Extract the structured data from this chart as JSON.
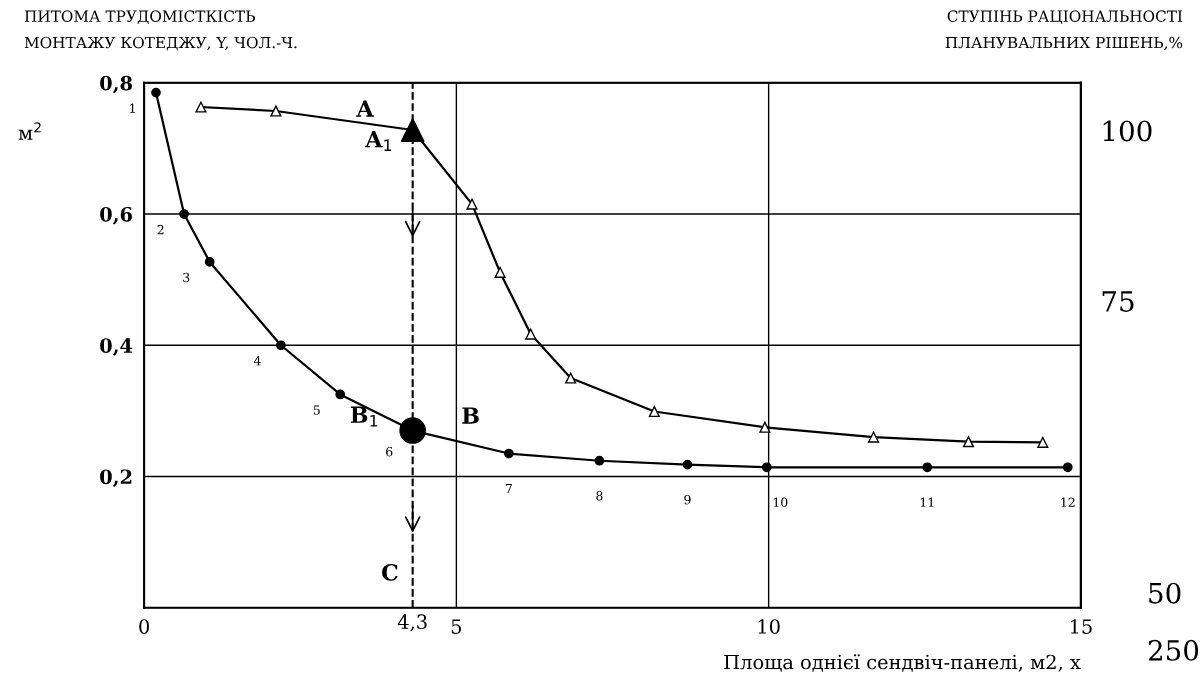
{
  "chart_data": {
    "type": "line",
    "ylabel": "ПИТОМА ТРУДОМІСТКІСТЬ\nМОНТАЖУ КОТЕДЖУ, Y, ЧОЛ.-Ч.",
    "y2label": "СТУПІНЬ РАЦІОНАЛЬНОСТІ\nПЛАНУВАЛЬНИХ РІШЕНЬ,%",
    "xlabel": "Площа однієї сендвіч-панелі, м2, х",
    "xlim": [
      0,
      15
    ],
    "xticks": [
      0,
      5,
      10,
      15
    ],
    "ylim": [
      0,
      0.8
    ],
    "yticks": [
      {
        "value": 0.2,
        "label": "0,2"
      },
      {
        "value": 0.4,
        "label": "0,4"
      },
      {
        "value": 0.6,
        "label": "0,6"
      },
      {
        "value": 0.8,
        "label": "0,8"
      }
    ],
    "y2lim": [
      30,
      107
    ],
    "y2ticks": [
      75,
      100
    ],
    "grid": true,
    "line_style": "solid",
    "series": [
      {
        "color": "#000000",
        "marker": "triangle",
        "x": [
          0.91,
          2.11,
          4.3,
          5.25,
          5.7,
          6.19,
          6.83,
          8.17,
          9.94,
          11.68,
          13.2,
          14.39
        ],
        "values": [
          0.763,
          0.757,
          0.728,
          0.615,
          0.511,
          0.417,
          0.35,
          0.299,
          0.275,
          0.26,
          0.253,
          0.252
        ]
      },
      {
        "color": "#000000",
        "marker": "circle",
        "x": [
          0.19,
          0.64,
          1.05,
          2.19,
          3.14,
          4.3,
          5.84,
          7.29,
          8.7,
          9.97,
          12.54,
          14.79
        ],
        "values": [
          0.785,
          0.6,
          0.527,
          0.4,
          0.325,
          0.27,
          0.235,
          0.224,
          0.218,
          0.214,
          0.214,
          0.214
        ]
      },
      {
        "type": "scatter",
        "color": "#000000",
        "marker": "triangle",
        "x": [
          4.3
        ],
        "values": [
          0.728
        ]
      },
      {
        "type": "scatter",
        "color": "#000000",
        "marker": "circle",
        "x": [
          4.3
        ],
        "values": [
          0.27
        ]
      }
    ],
    "ref_lines": [
      {
        "axis": "x",
        "value": 4.3,
        "label": "4,3",
        "color": "#000000",
        "line_style": "dashed"
      }
    ],
    "annotations": [
      {
        "text": "1",
        "x": 0.19,
        "y": 0.785
      },
      {
        "text": "2",
        "x": 0.64,
        "y": 0.6
      },
      {
        "text": "3",
        "x": 1.05,
        "y": 0.527
      },
      {
        "text": "4",
        "x": 2.19,
        "y": 0.4
      },
      {
        "text": "5",
        "x": 3.14,
        "y": 0.325
      },
      {
        "text": "6",
        "x": 4.3,
        "y": 0.27
      },
      {
        "text": "7",
        "x": 5.84,
        "y": 0.235
      },
      {
        "text": "8",
        "x": 7.29,
        "y": 0.224
      },
      {
        "text": "9",
        "x": 8.7,
        "y": 0.218
      },
      {
        "text": "10",
        "x": 9.97,
        "y": 0.214
      },
      {
        "text": "11",
        "x": 12.54,
        "y": 0.214
      },
      {
        "text": "12",
        "x": 14.79,
        "y": 0.214
      },
      {
        "text": "A",
        "x": 3.4,
        "y": 0.745
      },
      {
        "text": "A$_{1}$",
        "x": 4.3,
        "y": 0.728
      },
      {
        "text": "B",
        "x": 4.9,
        "y": 0.256
      },
      {
        "text": "B$_{1}$",
        "x": 4.3,
        "y": 0.27
      },
      {
        "text": "C",
        "x": 4.3,
        "y": 0.0
      },
      "м$^{2}$",
      "50",
      "250"
    ]
  }
}
